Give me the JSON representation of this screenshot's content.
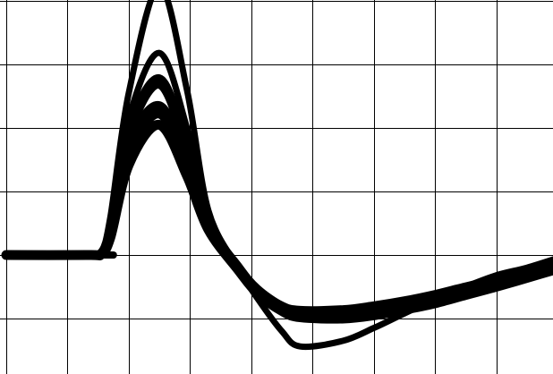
{
  "chart_data": {
    "type": "line",
    "title": "",
    "xlabel": "",
    "ylabel": "",
    "grid": true,
    "grid_divisions": {
      "x": 9,
      "y": 6
    },
    "xlim": [
      0,
      9
    ],
    "ylim": [
      -2,
      4
    ],
    "colors": {
      "background": "#ffffff",
      "grid": "#000000",
      "trace": "#000000"
    },
    "series": [
      {
        "x": [
          0,
          1.35,
          1.55,
          1.7,
          2.0,
          2.5,
          2.95,
          3.3,
          3.8,
          4.1,
          4.5,
          4.8,
          5.5,
          6.0,
          6.5,
          7.0,
          7.5,
          8.0,
          8.5,
          9.0
        ],
        "values": [
          0,
          0,
          0.02,
          0.28,
          1.42,
          2.05,
          1.25,
          0.4,
          -0.25,
          -0.6,
          -0.88,
          -0.98,
          -1.0,
          -0.95,
          -0.86,
          -0.76,
          -0.63,
          -0.5,
          -0.36,
          -0.22
        ]
      },
      {
        "x": [
          0,
          1.35,
          1.55,
          1.7,
          2.0,
          2.5,
          2.95,
          3.3,
          3.8,
          4.1,
          4.5,
          4.8,
          5.5,
          6.0,
          6.5,
          7.0,
          7.5,
          8.0,
          8.5,
          9.0
        ],
        "values": [
          0,
          0,
          0.02,
          0.33,
          1.58,
          2.22,
          1.35,
          0.42,
          -0.24,
          -0.58,
          -0.86,
          -0.96,
          -0.97,
          -0.92,
          -0.83,
          -0.73,
          -0.6,
          -0.47,
          -0.34,
          -0.2
        ]
      },
      {
        "x": [
          0,
          1.35,
          1.55,
          1.7,
          2.0,
          2.5,
          2.95,
          3.3,
          3.8,
          4.1,
          4.5,
          4.8,
          5.5,
          6.0,
          6.5,
          7.0,
          7.5,
          8.0,
          8.5,
          9.0
        ],
        "values": [
          0,
          0,
          0.03,
          0.38,
          1.72,
          2.35,
          1.45,
          0.45,
          -0.22,
          -0.56,
          -0.84,
          -0.93,
          -0.94,
          -0.88,
          -0.8,
          -0.7,
          -0.57,
          -0.45,
          -0.32,
          -0.17
        ]
      },
      {
        "x": [
          0,
          1.35,
          1.55,
          1.7,
          2.0,
          2.5,
          2.95,
          3.3,
          3.8,
          4.1,
          4.5,
          4.8,
          5.5,
          6.0,
          6.5,
          7.0,
          7.5,
          8.0,
          8.5,
          9.0
        ],
        "values": [
          0,
          0,
          0.03,
          0.42,
          1.88,
          2.68,
          1.65,
          0.5,
          -0.2,
          -0.54,
          -0.82,
          -0.9,
          -0.9,
          -0.84,
          -0.76,
          -0.66,
          -0.53,
          -0.42,
          -0.3,
          -0.15
        ]
      },
      {
        "x": [
          0,
          1.35,
          1.55,
          1.7,
          2.0,
          2.5,
          2.95,
          3.3,
          3.8,
          4.1,
          4.5,
          4.8,
          5.5,
          6.0,
          6.5,
          7.0,
          7.5,
          8.0,
          8.5,
          9.0
        ],
        "values": [
          0,
          0,
          0.03,
          0.44,
          1.96,
          2.78,
          1.72,
          0.52,
          -0.19,
          -0.53,
          -0.8,
          -0.88,
          -0.88,
          -0.82,
          -0.74,
          -0.63,
          -0.51,
          -0.4,
          -0.28,
          -0.12
        ]
      },
      {
        "x": [
          0,
          1.35,
          1.55,
          1.7,
          2.0,
          2.5,
          2.95,
          3.3,
          3.8,
          4.1,
          4.5,
          4.8,
          5.5,
          6.0,
          6.5,
          7.0,
          7.5,
          8.0,
          8.5,
          9.0
        ],
        "values": [
          0,
          0,
          0.04,
          0.5,
          2.15,
          3.18,
          2.0,
          0.58,
          -0.18,
          -0.52,
          -0.78,
          -0.85,
          -0.84,
          -0.78,
          -0.7,
          -0.6,
          -0.48,
          -0.37,
          -0.26,
          -0.1
        ]
      },
      {
        "x": [
          0,
          1.35,
          1.55,
          1.7,
          2.0,
          2.5,
          2.95,
          3.3,
          3.8,
          4.1,
          4.5,
          4.8,
          5.5,
          6.0,
          6.5,
          7.0,
          7.5,
          8.0,
          8.5,
          9.0
        ],
        "values": [
          0,
          0,
          0.05,
          0.6,
          2.55,
          4.22,
          2.6,
          0.7,
          -0.22,
          -0.68,
          -1.2,
          -1.44,
          -1.35,
          -1.15,
          -0.92,
          -0.7,
          -0.5,
          -0.32,
          -0.2,
          -0.05
        ]
      }
    ],
    "flat_lead": {
      "x": [
        1.3,
        1.75
      ],
      "value": 0
    }
  }
}
